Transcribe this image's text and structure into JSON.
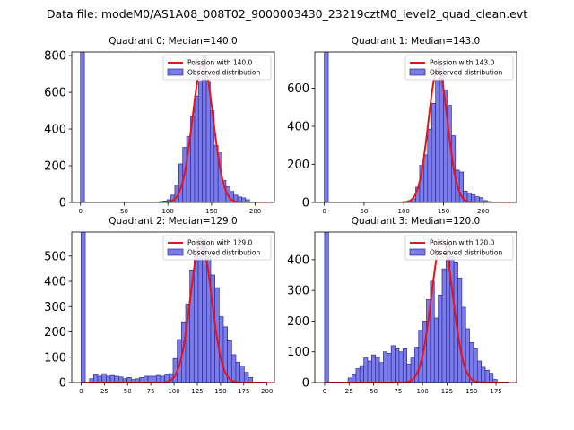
{
  "figure": {
    "suptitle": "Data file: modeM0/AS1A08_008T02_9000003430_23219cztM0_level2_quad_clean.evt"
  },
  "colors": {
    "bar_fill": "#7b7bea",
    "bar_edge": "#2a2a9a",
    "fit_line": "#ee1111",
    "axes": "#000000"
  },
  "chart_data": [
    {
      "type": "bar",
      "title": "Quadrant 0: Median=140.0",
      "xlim": [
        -10,
        222
      ],
      "ylim": [
        0,
        820
      ],
      "xticks": [
        0,
        50,
        100,
        150,
        200
      ],
      "yticks": [
        0,
        200,
        400,
        600,
        800
      ],
      "legend": [
        "Poission with 140.0",
        "Observed distribution"
      ],
      "bin_width": 4.5,
      "bars": [
        [
          0,
          825
        ],
        [
          90,
          5
        ],
        [
          94.5,
          8
        ],
        [
          99,
          15
        ],
        [
          103.5,
          40
        ],
        [
          108,
          95
        ],
        [
          112.5,
          210
        ],
        [
          117,
          300
        ],
        [
          121.5,
          360
        ],
        [
          126,
          470
        ],
        [
          130.5,
          580
        ],
        [
          135,
          660
        ],
        [
          139.5,
          800
        ],
        [
          144,
          660
        ],
        [
          148.5,
          500
        ],
        [
          153,
          310
        ],
        [
          157.5,
          270
        ],
        [
          162,
          120
        ],
        [
          166.5,
          85
        ],
        [
          171,
          60
        ],
        [
          175.5,
          40
        ],
        [
          180,
          30
        ],
        [
          184.5,
          25
        ],
        [
          189,
          15
        ]
      ],
      "fit_mean": 140,
      "fit_peak": 760
    },
    {
      "type": "bar",
      "title": "Quadrant 1: Median=143.0",
      "xlim": [
        -12,
        242
      ],
      "ylim": [
        0,
        790
      ],
      "xticks": [
        0,
        50,
        100,
        150,
        200
      ],
      "yticks": [
        0,
        200,
        400,
        600
      ],
      "legend": [
        "Poission with 143.0",
        "Observed distribution"
      ],
      "bin_width": 5,
      "bars": [
        [
          0,
          795
        ],
        [
          100,
          5
        ],
        [
          105,
          10
        ],
        [
          110,
          20
        ],
        [
          115,
          80
        ],
        [
          120,
          195
        ],
        [
          125,
          250
        ],
        [
          130,
          385
        ],
        [
          135,
          520
        ],
        [
          140,
          645
        ],
        [
          145,
          720
        ],
        [
          150,
          590
        ],
        [
          155,
          510
        ],
        [
          160,
          350
        ],
        [
          165,
          170
        ],
        [
          170,
          160
        ],
        [
          175,
          60
        ],
        [
          180,
          50
        ],
        [
          185,
          40
        ],
        [
          190,
          30
        ],
        [
          195,
          25
        ],
        [
          200,
          10
        ],
        [
          205,
          5
        ]
      ],
      "fit_mean": 143,
      "fit_peak": 705
    },
    {
      "type": "bar",
      "title": "Quadrant 2: Median=129.0",
      "xlim": [
        -10,
        208
      ],
      "ylim": [
        0,
        595
      ],
      "xticks": [
        0,
        25,
        50,
        75,
        100,
        125,
        150,
        175,
        200
      ],
      "yticks": [
        0,
        100,
        200,
        300,
        400,
        500
      ],
      "legend": [
        "Poission with 129.0",
        "Observed distribution"
      ],
      "bin_width": 4.5,
      "bars": [
        [
          0,
          600
        ],
        [
          9,
          15
        ],
        [
          13.5,
          30
        ],
        [
          18,
          25
        ],
        [
          22.5,
          35
        ],
        [
          27,
          25
        ],
        [
          31.5,
          28
        ],
        [
          36,
          25
        ],
        [
          40.5,
          22
        ],
        [
          45,
          15
        ],
        [
          49.5,
          20
        ],
        [
          54,
          12
        ],
        [
          58.5,
          15
        ],
        [
          63,
          20
        ],
        [
          67.5,
          25
        ],
        [
          72,
          25
        ],
        [
          76.5,
          25
        ],
        [
          81,
          28
        ],
        [
          85.5,
          25
        ],
        [
          90,
          30
        ],
        [
          94.5,
          35
        ],
        [
          99,
          95
        ],
        [
          103.5,
          170
        ],
        [
          108,
          240
        ],
        [
          112.5,
          310
        ],
        [
          117,
          445
        ],
        [
          121.5,
          500
        ],
        [
          126,
          570
        ],
        [
          130.5,
          540
        ],
        [
          135,
          500
        ],
        [
          139.5,
          425
        ],
        [
          144,
          375
        ],
        [
          148.5,
          260
        ],
        [
          153,
          220
        ],
        [
          157.5,
          165
        ],
        [
          162,
          110
        ],
        [
          166.5,
          80
        ],
        [
          171,
          65
        ],
        [
          175.5,
          40
        ],
        [
          180,
          20
        ]
      ],
      "fit_mean": 129,
      "fit_peak": 560
    },
    {
      "type": "bar",
      "title": "Quadrant 3: Median=120.0",
      "xlim": [
        -10,
        196
      ],
      "ylim": [
        0,
        490
      ],
      "xticks": [
        0,
        25,
        50,
        75,
        100,
        125,
        150,
        175
      ],
      "yticks": [
        0,
        100,
        200,
        300,
        400
      ],
      "legend": [
        "Poission with 120.0",
        "Observed distribution"
      ],
      "bin_width": 4,
      "bars": [
        [
          0,
          495
        ],
        [
          24,
          15
        ],
        [
          28,
          25
        ],
        [
          32,
          45
        ],
        [
          36,
          55
        ],
        [
          40,
          80
        ],
        [
          44,
          70
        ],
        [
          48,
          90
        ],
        [
          52,
          80
        ],
        [
          56,
          65
        ],
        [
          60,
          100
        ],
        [
          64,
          95
        ],
        [
          68,
          120
        ],
        [
          72,
          110
        ],
        [
          76,
          100
        ],
        [
          80,
          110
        ],
        [
          84,
          60
        ],
        [
          88,
          80
        ],
        [
          92,
          115
        ],
        [
          96,
          170
        ],
        [
          100,
          200
        ],
        [
          104,
          270
        ],
        [
          108,
          330
        ],
        [
          112,
          210
        ],
        [
          116,
          285
        ],
        [
          120,
          370
        ],
        [
          124,
          445
        ],
        [
          128,
          410
        ],
        [
          132,
          390
        ],
        [
          136,
          340
        ],
        [
          140,
          245
        ],
        [
          144,
          175
        ],
        [
          148,
          130
        ],
        [
          152,
          110
        ],
        [
          156,
          70
        ],
        [
          160,
          50
        ],
        [
          164,
          40
        ],
        [
          168,
          30
        ],
        [
          172,
          10
        ]
      ],
      "fit_mean": 120,
      "fit_peak": 465
    }
  ]
}
